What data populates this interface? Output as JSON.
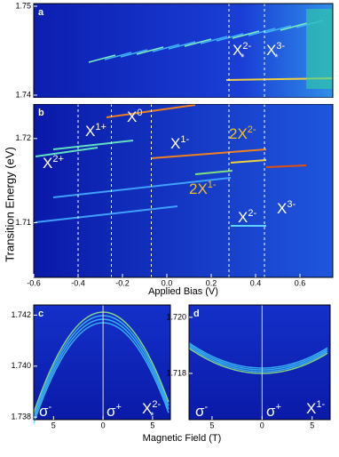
{
  "chart_data": [
    {
      "type": "heatmap",
      "panel": "a",
      "ylim": [
        1.7397,
        1.7503
      ],
      "yticks": [
        1.75,
        1.74
      ],
      "annotations": [
        {
          "base": "X",
          "sup": "2-",
          "sub": "*"
        },
        {
          "base": "X",
          "sup": "3-",
          "sub": "*"
        }
      ]
    },
    {
      "type": "heatmap",
      "panel": "b",
      "x_label": "Applied Bias (V)",
      "y_label": "Transition Energy (eV)",
      "xlim": [
        -0.6,
        0.748
      ],
      "xticks": [
        -0.6,
        -0.4,
        -0.2,
        {
          "value": 0,
          "label": "0.0"
        },
        0.2,
        0.4,
        0.6
      ],
      "ylim": [
        1.7035,
        1.7241
      ],
      "yticks": [
        1.72,
        1.71
      ],
      "annotations": [
        {
          "base": "X",
          "sup": "0"
        },
        {
          "base": "X",
          "sup": "1+"
        },
        {
          "base": "X",
          "sup": "1-"
        },
        {
          "base": "X",
          "sup": "2+"
        },
        {
          "base": "2X",
          "sup": "2-"
        },
        {
          "base": "2X",
          "sup": "1-"
        },
        {
          "base": "X",
          "sup": "2-"
        },
        {
          "base": "X",
          "sup": "3-"
        }
      ]
    },
    {
      "type": "heatmap",
      "panel": "c",
      "x_label": "Magnetic Field (T)",
      "xlim": [
        -7,
        6.8
      ],
      "xticks": [
        {
          "value": -5,
          "label": "5"
        },
        0,
        5
      ],
      "ylim": [
        1.7379,
        1.7424
      ],
      "yticks": [
        {
          "value": 1.742,
          "label": "1.742"
        },
        {
          "value": 1.74,
          "label": "1.740"
        },
        {
          "value": 1.738,
          "label": "1.738"
        }
      ],
      "annotations": [
        {
          "base": "σ",
          "sup": "-"
        },
        {
          "base": "σ",
          "sup": "+"
        },
        {
          "base": "X",
          "sup": "2-",
          "sub": "*"
        }
      ]
    },
    {
      "type": "heatmap",
      "panel": "d",
      "xlim": [
        -7.3,
        6.8
      ],
      "xticks": [
        {
          "value": -5,
          "label": "5"
        },
        0,
        5
      ],
      "ylim": [
        1.71635,
        1.72044
      ],
      "yticks": [
        {
          "value": 1.72,
          "label": "1.720"
        },
        {
          "value": 1.718,
          "label": "1.718"
        }
      ],
      "annotations": [
        {
          "base": "σ",
          "sup": "-"
        },
        {
          "base": "σ",
          "sup": "+"
        },
        {
          "base": "X",
          "sup": "1-"
        }
      ]
    }
  ]
}
